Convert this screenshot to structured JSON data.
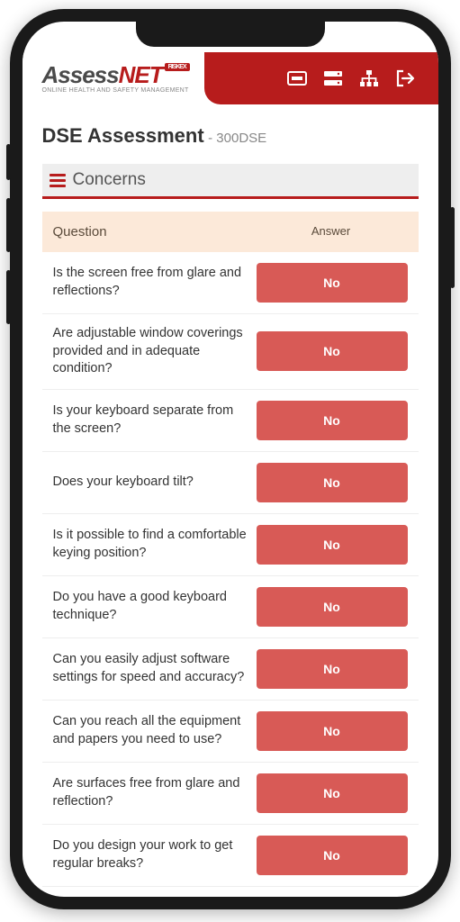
{
  "brand": {
    "name_prefix": "Assess",
    "name_accent": "NET",
    "badge": "RISKEX",
    "tagline": "ONLINE HEALTH AND SAFETY MANAGEMENT"
  },
  "colors": {
    "brand_red": "#b71c1c",
    "answer_btn": "#d85a56",
    "table_head_bg": "#fce9d9",
    "section_bg": "#eeeeee",
    "text_primary": "#333333",
    "text_muted": "#888888"
  },
  "page": {
    "title": "DSE Assessment",
    "subtitle": "- 300DSE"
  },
  "section": {
    "title": "Concerns"
  },
  "table": {
    "col_question": "Question",
    "col_answer": "Answer"
  },
  "questions": [
    {
      "q": "Is the screen free from glare and reflections?",
      "a": "No"
    },
    {
      "q": "Are adjustable window coverings provided and in adequate condition?",
      "a": "No"
    },
    {
      "q": "Is your keyboard separate from the screen?",
      "a": "No"
    },
    {
      "q": "Does your keyboard tilt?",
      "a": "No"
    },
    {
      "q": "Is it possible to find a comfortable keying position?",
      "a": "No"
    },
    {
      "q": "Do you have a good keyboard technique?",
      "a": "No"
    },
    {
      "q": "Can you easily adjust software settings for speed and accuracy?",
      "a": "No"
    },
    {
      "q": "Can you reach all the equipment and papers you need to use?",
      "a": "No"
    },
    {
      "q": "Are surfaces free from glare and reflection?",
      "a": "No"
    },
    {
      "q": "Do you design your work to get regular breaks?",
      "a": "No"
    }
  ]
}
